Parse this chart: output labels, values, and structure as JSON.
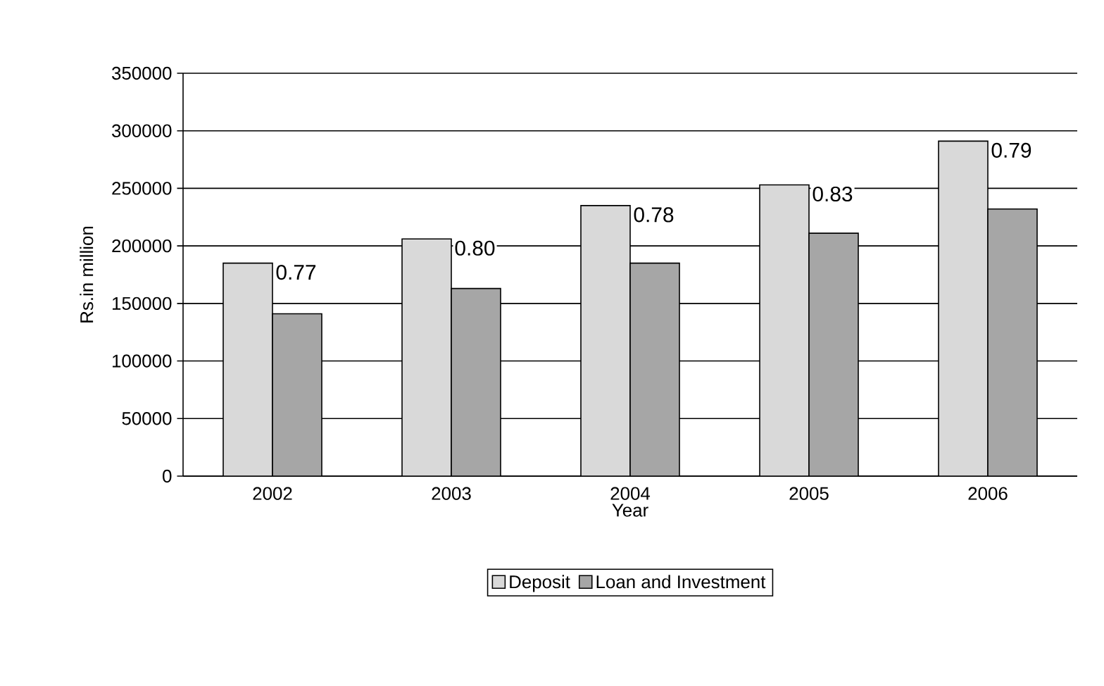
{
  "chart_data": {
    "type": "bar",
    "xlabel": "Year",
    "ylabel": "Rs.in million",
    "categories": [
      "2002",
      "2003",
      "2004",
      "2005",
      "2006"
    ],
    "series": [
      {
        "name": "Deposit",
        "color": "#d9d9d9",
        "values": [
          185000,
          206000,
          235000,
          253000,
          291000
        ]
      },
      {
        "name": "Loan and Investment",
        "color": "#a6a6a6",
        "values": [
          141000,
          163000,
          185000,
          211000,
          232000
        ]
      }
    ],
    "ylim": [
      0,
      350000
    ],
    "yticks": [
      0,
      50000,
      100000,
      150000,
      200000,
      250000,
      300000,
      350000
    ],
    "grid": "y",
    "legend": "bottom",
    "annotations": [
      {
        "text": "0.77",
        "x": "2002",
        "y": 185000
      },
      {
        "text": "0.80",
        "x": "2003",
        "y": 206000
      },
      {
        "text": "0.78",
        "x": "2004",
        "y": 235000
      },
      {
        "text": "0.83",
        "x": "2005",
        "y": 253000
      },
      {
        "text": "0.79",
        "x": "2006",
        "y": 291000
      }
    ]
  }
}
